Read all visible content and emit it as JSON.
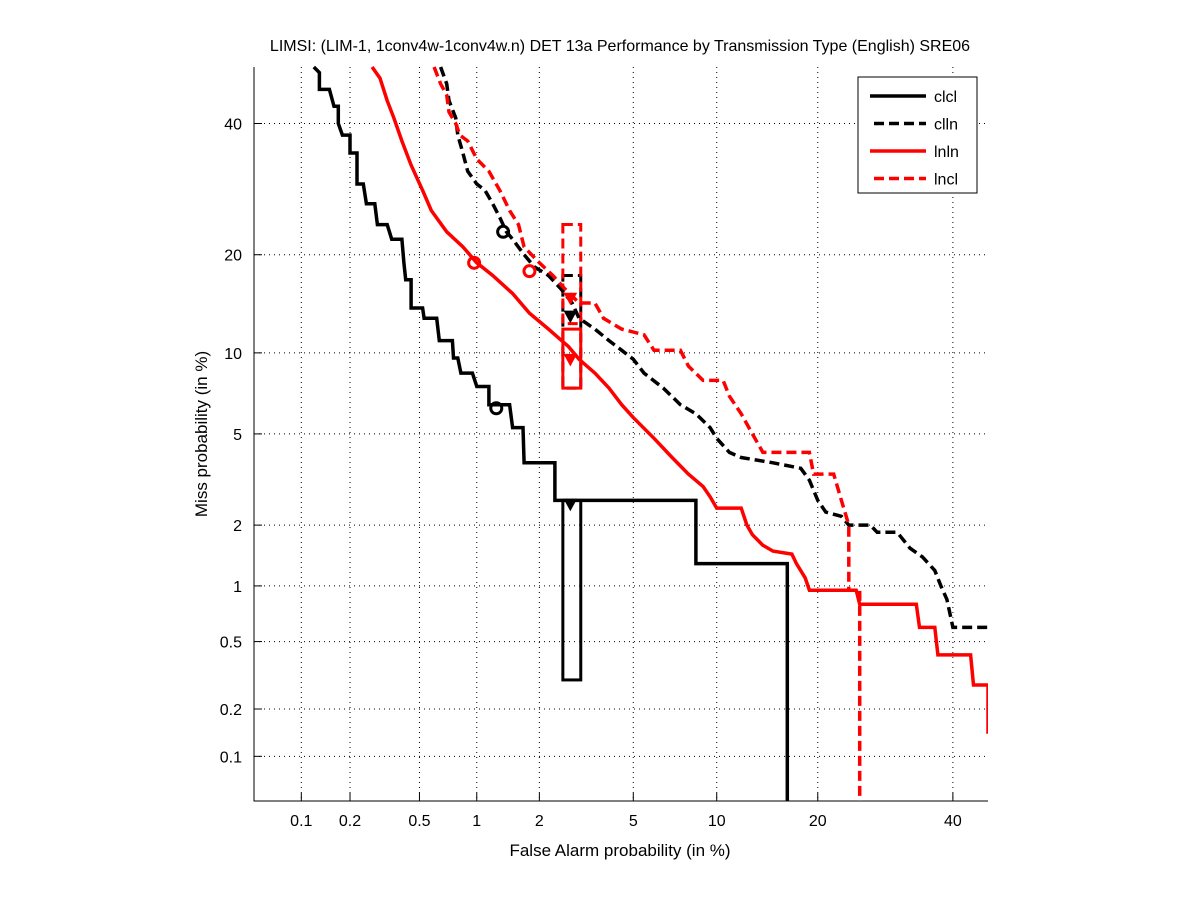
{
  "chart_data": {
    "type": "line",
    "scale": "probit",
    "title": "LIMSI: (LIM-1, 1conv4w-1conv4w.n) DET 13a Performance by Transmission Type (English) SRE06",
    "xlabel": "False Alarm probability (in %)",
    "ylabel": "Miss probability (in %)",
    "xlim": [
      0.049,
      46
    ],
    "ylim": [
      0.05,
      50
    ],
    "xticks": [
      0.1,
      0.2,
      0.5,
      1,
      2,
      5,
      10,
      20,
      40
    ],
    "xtick_labels": [
      "0.1",
      "0.2",
      "0.5",
      "1",
      "2",
      "5",
      "10",
      "20",
      "40"
    ],
    "yticks": [
      0.1,
      0.2,
      0.5,
      1,
      2,
      5,
      10,
      20,
      40
    ],
    "ytick_labels": [
      "0.1",
      "0.2",
      "0.5",
      "1",
      "2",
      "5",
      "10",
      "20",
      "40"
    ],
    "grid": true,
    "legend_position": "top-right",
    "series": [
      {
        "name": "clcl",
        "color": "#000000",
        "dash": "solid",
        "points": [
          [
            0.12,
            50
          ],
          [
            0.13,
            49
          ],
          [
            0.13,
            46
          ],
          [
            0.15,
            46
          ],
          [
            0.16,
            43
          ],
          [
            0.17,
            43
          ],
          [
            0.17,
            40
          ],
          [
            0.18,
            38
          ],
          [
            0.2,
            38
          ],
          [
            0.2,
            35
          ],
          [
            0.22,
            35
          ],
          [
            0.22,
            30
          ],
          [
            0.24,
            30
          ],
          [
            0.25,
            27
          ],
          [
            0.28,
            27
          ],
          [
            0.29,
            24
          ],
          [
            0.33,
            24
          ],
          [
            0.35,
            22
          ],
          [
            0.4,
            22
          ],
          [
            0.41,
            19
          ],
          [
            0.42,
            17
          ],
          [
            0.45,
            17
          ],
          [
            0.45,
            14
          ],
          [
            0.52,
            14
          ],
          [
            0.53,
            13
          ],
          [
            0.62,
            13
          ],
          [
            0.64,
            11
          ],
          [
            0.75,
            11
          ],
          [
            0.76,
            9.6
          ],
          [
            0.8,
            9.6
          ],
          [
            0.83,
            8.5
          ],
          [
            0.95,
            8.5
          ],
          [
            1.0,
            7.6
          ],
          [
            1.15,
            7.6
          ],
          [
            1.15,
            6.5
          ],
          [
            1.45,
            6.5
          ],
          [
            1.5,
            5.3
          ],
          [
            1.68,
            5.3
          ],
          [
            1.7,
            3.8
          ],
          [
            2.35,
            3.8
          ],
          [
            2.35,
            2.6
          ],
          [
            8.5,
            2.6
          ],
          [
            8.5,
            1.3
          ],
          [
            16.5,
            1.3
          ],
          [
            16.5,
            0.05
          ]
        ],
        "operating_point": {
          "fa": 1.25,
          "miss": 6.3,
          "marker": "circle"
        },
        "min_dcf_point": {
          "fa": 2.75,
          "miss": 2.5,
          "marker": "triangle-down"
        },
        "confidence_box": {
          "fa": [
            2.55,
            3.05
          ],
          "miss": [
            0.3,
            2.6
          ]
        }
      },
      {
        "name": "clln",
        "color": "#000000",
        "dash": "dashed",
        "points": [
          [
            0.65,
            50
          ],
          [
            0.7,
            47
          ],
          [
            0.72,
            44
          ],
          [
            0.78,
            41
          ],
          [
            0.8,
            38
          ],
          [
            0.85,
            35
          ],
          [
            0.9,
            32
          ],
          [
            1.0,
            30
          ],
          [
            1.1,
            29
          ],
          [
            1.2,
            27
          ],
          [
            1.3,
            25
          ],
          [
            1.4,
            23
          ],
          [
            1.5,
            22
          ],
          [
            1.7,
            20
          ],
          [
            1.9,
            18.5
          ],
          [
            2.2,
            17.5
          ],
          [
            2.5,
            16
          ],
          [
            2.8,
            14.5
          ],
          [
            3.0,
            13
          ],
          [
            3.5,
            12
          ],
          [
            4.0,
            11
          ],
          [
            4.5,
            10.2
          ],
          [
            5.0,
            9.5
          ],
          [
            5.5,
            8.5
          ],
          [
            6.5,
            7.5
          ],
          [
            7.5,
            6.5
          ],
          [
            8.5,
            6
          ],
          [
            9.5,
            5.3
          ],
          [
            10,
            4.8
          ],
          [
            11,
            4.2
          ],
          [
            12,
            4
          ],
          [
            15,
            3.8
          ],
          [
            18,
            3.6
          ],
          [
            19,
            3.2
          ],
          [
            20,
            2.6
          ],
          [
            21,
            2.3
          ],
          [
            23,
            2.2
          ],
          [
            24,
            2.0
          ],
          [
            27,
            2.0
          ],
          [
            28,
            1.85
          ],
          [
            31,
            1.85
          ],
          [
            33,
            1.55
          ],
          [
            35,
            1.4
          ],
          [
            37,
            1.2
          ],
          [
            38,
            1.0
          ],
          [
            39,
            0.85
          ],
          [
            40,
            0.6
          ],
          [
            46,
            0.6
          ]
        ],
        "operating_point": {
          "fa": 1.35,
          "miss": 23.0,
          "marker": "circle"
        },
        "min_dcf_point": {
          "fa": 2.75,
          "miss": 13.2,
          "marker": "triangle-down"
        },
        "confidence_box": {
          "fa": [
            2.55,
            3.05
          ],
          "miss": [
            7.5,
            17.5
          ]
        }
      },
      {
        "name": "lnln",
        "color": "#ff0000",
        "dash": "solid",
        "points": [
          [
            0.27,
            50
          ],
          [
            0.3,
            48
          ],
          [
            0.33,
            44
          ],
          [
            0.36,
            41
          ],
          [
            0.4,
            37
          ],
          [
            0.45,
            33
          ],
          [
            0.52,
            29
          ],
          [
            0.58,
            26
          ],
          [
            0.7,
            23
          ],
          [
            0.85,
            21
          ],
          [
            1.0,
            19
          ],
          [
            1.2,
            17.5
          ],
          [
            1.5,
            15.5
          ],
          [
            1.8,
            13.5
          ],
          [
            2.2,
            12
          ],
          [
            2.7,
            10.5
          ],
          [
            3.0,
            9.5
          ],
          [
            3.5,
            8.5
          ],
          [
            4.0,
            7.5
          ],
          [
            4.5,
            6.5
          ],
          [
            5.0,
            5.8
          ],
          [
            6.0,
            4.8
          ],
          [
            7.0,
            4.0
          ],
          [
            8.0,
            3.4
          ],
          [
            9.0,
            3.0
          ],
          [
            9.5,
            2.7
          ],
          [
            10.0,
            2.4
          ],
          [
            12,
            2.4
          ],
          [
            12.5,
            2.0
          ],
          [
            13,
            1.8
          ],
          [
            14,
            1.6
          ],
          [
            15,
            1.5
          ],
          [
            17,
            1.45
          ],
          [
            17.5,
            1.3
          ],
          [
            18.5,
            1.1
          ],
          [
            19,
            0.95
          ],
          [
            25,
            0.95
          ],
          [
            25.5,
            0.8
          ],
          [
            34,
            0.8
          ],
          [
            34.5,
            0.6
          ],
          [
            37,
            0.6
          ],
          [
            37.5,
            0.42
          ],
          [
            43,
            0.42
          ],
          [
            43.5,
            0.28
          ],
          [
            46,
            0.28
          ],
          [
            46,
            0.14
          ]
        ],
        "operating_point": {
          "fa": 0.97,
          "miss": 19.0,
          "marker": "circle"
        },
        "min_dcf_point": {
          "fa": 2.75,
          "miss": 9.5,
          "marker": "triangle-down"
        },
        "confidence_box": {
          "fa": [
            2.55,
            3.05
          ],
          "miss": [
            7.5,
            12.0
          ]
        }
      },
      {
        "name": "lncl",
        "color": "#ff0000",
        "dash": "dashed",
        "points": [
          [
            0.6,
            50
          ],
          [
            0.65,
            47
          ],
          [
            0.7,
            45
          ],
          [
            0.72,
            42
          ],
          [
            0.78,
            40
          ],
          [
            0.82,
            38
          ],
          [
            0.9,
            37
          ],
          [
            1.0,
            34
          ],
          [
            1.15,
            32
          ],
          [
            1.3,
            29
          ],
          [
            1.45,
            26
          ],
          [
            1.6,
            24
          ],
          [
            1.7,
            21
          ],
          [
            2.0,
            19
          ],
          [
            2.3,
            17.5
          ],
          [
            2.6,
            16
          ],
          [
            3.0,
            14.5
          ],
          [
            3.5,
            14.5
          ],
          [
            3.8,
            13
          ],
          [
            4.5,
            12
          ],
          [
            5.5,
            11.5
          ],
          [
            6.0,
            10.2
          ],
          [
            7.5,
            10.2
          ],
          [
            8.0,
            9
          ],
          [
            9.0,
            8
          ],
          [
            10.5,
            8
          ],
          [
            11,
            7
          ],
          [
            12,
            6
          ],
          [
            13,
            5
          ],
          [
            14,
            4.2
          ],
          [
            19,
            4.2
          ],
          [
            19.5,
            3.4
          ],
          [
            22,
            3.4
          ],
          [
            23,
            2.6
          ],
          [
            24,
            2.0
          ],
          [
            24,
            1.0
          ],
          [
            24,
            0.95
          ],
          [
            25.5,
            0.95
          ],
          [
            25.5,
            0.05
          ]
        ],
        "operating_point": {
          "fa": 1.8,
          "miss": 18.0,
          "marker": "circle"
        },
        "min_dcf_point": {
          "fa": 2.75,
          "miss": 15.0,
          "marker": "triangle-down"
        },
        "confidence_box": {
          "fa": [
            2.55,
            3.05
          ],
          "miss": [
            12.5,
            24.0
          ]
        }
      }
    ]
  }
}
